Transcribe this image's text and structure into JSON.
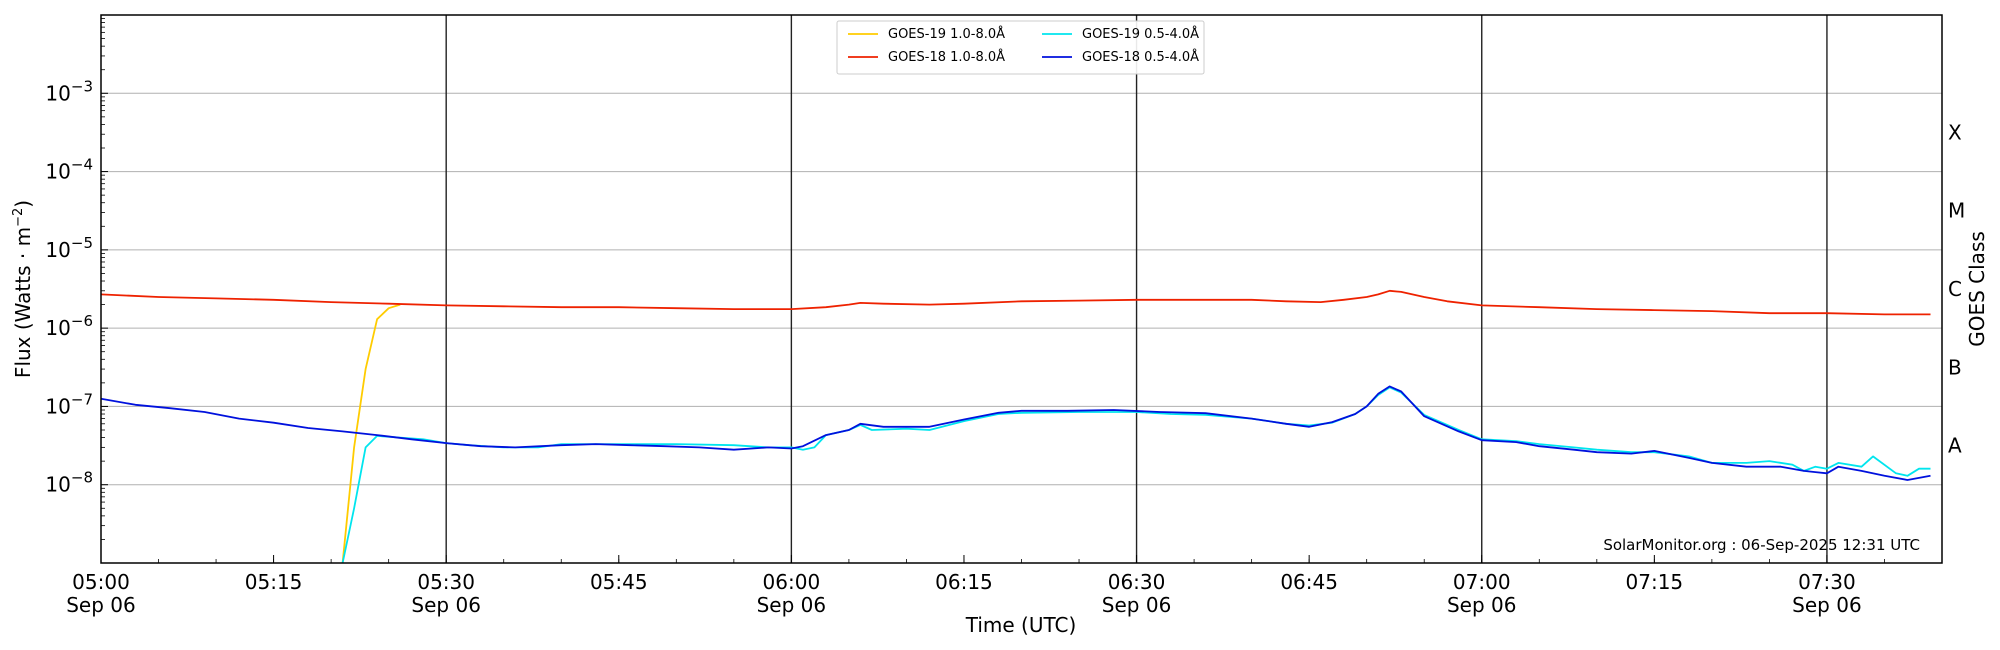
{
  "chart_data": {
    "type": "line",
    "title": "",
    "xlabel": "Time (UTC)",
    "ylabel_main": "Flux (Watts · m",
    "ylabel_sup": "−2",
    "ylabel_close": ")",
    "ylabel_right": "GOES Class",
    "yscale": "log",
    "xlim": [
      "05:00",
      "07:40"
    ],
    "ylim": [
      1e-09,
      0.01
    ],
    "grid": "horizontal",
    "legend_position": "top-center",
    "credit": "SolarMonitor.org : 06-Sep-2025 12:31 UTC",
    "x_ticks": [
      {
        "time": "05:00",
        "date": "Sep 06"
      },
      {
        "time": "05:15",
        "date": ""
      },
      {
        "time": "05:30",
        "date": "Sep 06"
      },
      {
        "time": "05:45",
        "date": ""
      },
      {
        "time": "06:00",
        "date": "Sep 06"
      },
      {
        "time": "06:15",
        "date": ""
      },
      {
        "time": "06:30",
        "date": "Sep 06"
      },
      {
        "time": "06:45",
        "date": ""
      },
      {
        "time": "07:00",
        "date": "Sep 06"
      },
      {
        "time": "07:15",
        "date": ""
      },
      {
        "time": "07:30",
        "date": "Sep 06"
      }
    ],
    "vertical_lines": [
      "05:30",
      "06:00",
      "06:30",
      "07:00",
      "07:30"
    ],
    "y_ticks": [
      {
        "value": 1e-08,
        "base": "10",
        "exp": "−8"
      },
      {
        "value": 1e-07,
        "base": "10",
        "exp": "−7"
      },
      {
        "value": 1e-06,
        "base": "10",
        "exp": "−6"
      },
      {
        "value": 1e-05,
        "base": "10",
        "exp": "−5"
      },
      {
        "value": 0.0001,
        "base": "10",
        "exp": "−4"
      },
      {
        "value": 0.001,
        "base": "10",
        "exp": "−3"
      }
    ],
    "goes_classes": [
      {
        "label": "A",
        "value": 3.16e-08
      },
      {
        "label": "B",
        "value": 3.16e-07
      },
      {
        "label": "C",
        "value": 3.16e-06
      },
      {
        "label": "M",
        "value": 3.16e-05
      },
      {
        "label": "X",
        "value": 0.000316
      }
    ],
    "series": [
      {
        "name": "GOES-19 1.0-8.0Å",
        "color": "#ffcc00",
        "points": [
          [
            "05:21",
            1e-09
          ],
          [
            "05:22",
            3e-08
          ],
          [
            "05:23",
            3e-07
          ],
          [
            "05:24",
            1.3e-06
          ],
          [
            "05:25",
            1.8e-06
          ],
          [
            "05:26",
            2e-06
          ]
        ]
      },
      {
        "name": "GOES-18 1.0-8.0Å",
        "color": "#ee2200",
        "points": [
          [
            "05:00",
            2.7e-06
          ],
          [
            "05:05",
            2.5e-06
          ],
          [
            "05:10",
            2.4e-06
          ],
          [
            "05:15",
            2.3e-06
          ],
          [
            "05:20",
            2.15e-06
          ],
          [
            "05:25",
            2.05e-06
          ],
          [
            "05:30",
            1.95e-06
          ],
          [
            "05:35",
            1.9e-06
          ],
          [
            "05:40",
            1.85e-06
          ],
          [
            "05:45",
            1.85e-06
          ],
          [
            "05:50",
            1.8e-06
          ],
          [
            "05:55",
            1.75e-06
          ],
          [
            "06:00",
            1.75e-06
          ],
          [
            "06:03",
            1.85e-06
          ],
          [
            "06:05",
            2e-06
          ],
          [
            "06:06",
            2.1e-06
          ],
          [
            "06:08",
            2.05e-06
          ],
          [
            "06:12",
            2e-06
          ],
          [
            "06:15",
            2.05e-06
          ],
          [
            "06:20",
            2.2e-06
          ],
          [
            "06:25",
            2.25e-06
          ],
          [
            "06:30",
            2.3e-06
          ],
          [
            "06:35",
            2.3e-06
          ],
          [
            "06:40",
            2.3e-06
          ],
          [
            "06:43",
            2.2e-06
          ],
          [
            "06:46",
            2.15e-06
          ],
          [
            "06:48",
            2.3e-06
          ],
          [
            "06:50",
            2.5e-06
          ],
          [
            "06:51",
            2.7e-06
          ],
          [
            "06:52",
            3e-06
          ],
          [
            "06:53",
            2.9e-06
          ],
          [
            "06:55",
            2.5e-06
          ],
          [
            "06:57",
            2.2e-06
          ],
          [
            "07:00",
            1.95e-06
          ],
          [
            "07:05",
            1.85e-06
          ],
          [
            "07:10",
            1.75e-06
          ],
          [
            "07:15",
            1.7e-06
          ],
          [
            "07:20",
            1.65e-06
          ],
          [
            "07:25",
            1.55e-06
          ],
          [
            "07:30",
            1.55e-06
          ],
          [
            "07:35",
            1.5e-06
          ],
          [
            "07:39",
            1.5e-06
          ]
        ]
      },
      {
        "name": "GOES-19 0.5-4.0Å",
        "color": "#00e5ee",
        "points": [
          [
            "05:21",
            1e-09
          ],
          [
            "05:22",
            5e-09
          ],
          [
            "05:23",
            3e-08
          ],
          [
            "05:24",
            4.2e-08
          ],
          [
            "05:26",
            4e-08
          ],
          [
            "05:28",
            3.8e-08
          ],
          [
            "05:30",
            3.4e-08
          ],
          [
            "05:32",
            3.2e-08
          ],
          [
            "05:35",
            3e-08
          ],
          [
            "05:38",
            3e-08
          ],
          [
            "05:40",
            3.3e-08
          ],
          [
            "05:45",
            3.3e-08
          ],
          [
            "05:50",
            3.3e-08
          ],
          [
            "05:55",
            3.2e-08
          ],
          [
            "05:58",
            3e-08
          ],
          [
            "06:00",
            3e-08
          ],
          [
            "06:01",
            2.8e-08
          ],
          [
            "06:02",
            3e-08
          ],
          [
            "06:03",
            4.3e-08
          ],
          [
            "06:05",
            5e-08
          ],
          [
            "06:06",
            5.8e-08
          ],
          [
            "06:07",
            5e-08
          ],
          [
            "06:10",
            5.2e-08
          ],
          [
            "06:12",
            5e-08
          ],
          [
            "06:15",
            6.5e-08
          ],
          [
            "06:18",
            8e-08
          ],
          [
            "06:20",
            8.3e-08
          ],
          [
            "06:25",
            8.5e-08
          ],
          [
            "06:30",
            8.5e-08
          ],
          [
            "06:33",
            8e-08
          ],
          [
            "06:36",
            7.8e-08
          ],
          [
            "06:40",
            7e-08
          ],
          [
            "06:43",
            6e-08
          ],
          [
            "06:45",
            5.7e-08
          ],
          [
            "06:47",
            6.2e-08
          ],
          [
            "06:49",
            8e-08
          ],
          [
            "06:50",
            1e-07
          ],
          [
            "06:51",
            1.4e-07
          ],
          [
            "06:52",
            1.75e-07
          ],
          [
            "06:53",
            1.5e-07
          ],
          [
            "06:55",
            7.8e-08
          ],
          [
            "06:58",
            5e-08
          ],
          [
            "07:00",
            3.8e-08
          ],
          [
            "07:03",
            3.6e-08
          ],
          [
            "07:05",
            3.3e-08
          ],
          [
            "07:08",
            3e-08
          ],
          [
            "07:10",
            2.8e-08
          ],
          [
            "07:13",
            2.6e-08
          ],
          [
            "07:15",
            2.6e-08
          ],
          [
            "07:18",
            2.3e-08
          ],
          [
            "07:20",
            1.9e-08
          ],
          [
            "07:23",
            1.9e-08
          ],
          [
            "07:25",
            2e-08
          ],
          [
            "07:27",
            1.8e-08
          ],
          [
            "07:28",
            1.5e-08
          ],
          [
            "07:29",
            1.7e-08
          ],
          [
            "07:30",
            1.6e-08
          ],
          [
            "07:31",
            1.9e-08
          ],
          [
            "07:33",
            1.7e-08
          ],
          [
            "07:34",
            2.3e-08
          ],
          [
            "07:36",
            1.4e-08
          ],
          [
            "07:37",
            1.3e-08
          ],
          [
            "07:38",
            1.6e-08
          ],
          [
            "07:39",
            1.6e-08
          ]
        ]
      },
      {
        "name": "GOES-18 0.5-4.0Å",
        "color": "#0011dd",
        "points": [
          [
            "05:00",
            1.25e-07
          ],
          [
            "05:03",
            1.05e-07
          ],
          [
            "05:06",
            9.5e-08
          ],
          [
            "05:09",
            8.5e-08
          ],
          [
            "05:12",
            7e-08
          ],
          [
            "05:15",
            6.2e-08
          ],
          [
            "05:18",
            5.3e-08
          ],
          [
            "05:21",
            4.8e-08
          ],
          [
            "05:24",
            4.3e-08
          ],
          [
            "05:27",
            3.8e-08
          ],
          [
            "05:30",
            3.4e-08
          ],
          [
            "05:33",
            3.1e-08
          ],
          [
            "05:36",
            3e-08
          ],
          [
            "05:40",
            3.2e-08
          ],
          [
            "05:43",
            3.3e-08
          ],
          [
            "05:46",
            3.2e-08
          ],
          [
            "05:49",
            3.1e-08
          ],
          [
            "05:52",
            3e-08
          ],
          [
            "05:55",
            2.8e-08
          ],
          [
            "05:58",
            3e-08
          ],
          [
            "06:00",
            2.9e-08
          ],
          [
            "06:01",
            3.1e-08
          ],
          [
            "06:03",
            4.3e-08
          ],
          [
            "06:05",
            5e-08
          ],
          [
            "06:06",
            6e-08
          ],
          [
            "06:08",
            5.5e-08
          ],
          [
            "06:12",
            5.5e-08
          ],
          [
            "06:15",
            6.8e-08
          ],
          [
            "06:18",
            8.3e-08
          ],
          [
            "06:20",
            8.8e-08
          ],
          [
            "06:24",
            8.8e-08
          ],
          [
            "06:28",
            9e-08
          ],
          [
            "06:32",
            8.5e-08
          ],
          [
            "06:36",
            8.2e-08
          ],
          [
            "06:40",
            7e-08
          ],
          [
            "06:43",
            6e-08
          ],
          [
            "06:45",
            5.5e-08
          ],
          [
            "06:47",
            6.3e-08
          ],
          [
            "06:49",
            8e-08
          ],
          [
            "06:50",
            1e-07
          ],
          [
            "06:51",
            1.45e-07
          ],
          [
            "06:52",
            1.8e-07
          ],
          [
            "06:53",
            1.55e-07
          ],
          [
            "06:55",
            7.5e-08
          ],
          [
            "06:58",
            4.8e-08
          ],
          [
            "07:00",
            3.7e-08
          ],
          [
            "07:03",
            3.5e-08
          ],
          [
            "07:05",
            3.1e-08
          ],
          [
            "07:08",
            2.8e-08
          ],
          [
            "07:10",
            2.6e-08
          ],
          [
            "07:13",
            2.5e-08
          ],
          [
            "07:15",
            2.7e-08
          ],
          [
            "07:18",
            2.2e-08
          ],
          [
            "07:20",
            1.9e-08
          ],
          [
            "07:23",
            1.7e-08
          ],
          [
            "07:26",
            1.7e-08
          ],
          [
            "07:28",
            1.5e-08
          ],
          [
            "07:29",
            1.45e-08
          ],
          [
            "07:30",
            1.4e-08
          ],
          [
            "07:31",
            1.7e-08
          ],
          [
            "07:33",
            1.5e-08
          ],
          [
            "07:35",
            1.3e-08
          ],
          [
            "07:37",
            1.15e-08
          ],
          [
            "07:39",
            1.3e-08
          ]
        ]
      }
    ]
  }
}
